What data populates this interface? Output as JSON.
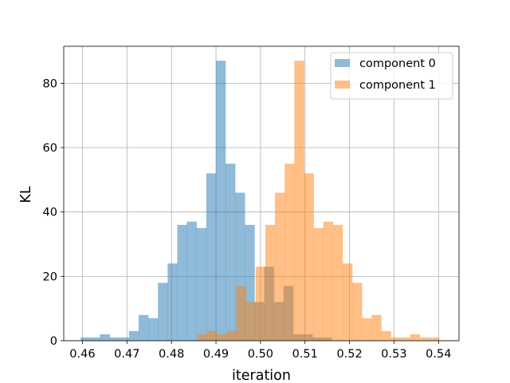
{
  "chart_data": {
    "type": "histogram",
    "title": "",
    "xlabel": "iteration",
    "ylabel": "KL",
    "xlim": [
      0.4558,
      0.5446
    ],
    "ylim": [
      0,
      91.5
    ],
    "grid": true,
    "legend_position": "top-right",
    "x_ticks": [
      "0.46",
      "0.47",
      "0.48",
      "0.49",
      "0.50",
      "0.51",
      "0.52",
      "0.53",
      "0.54"
    ],
    "x_tick_values": [
      0.46,
      0.47,
      0.48,
      0.49,
      0.5,
      0.51,
      0.52,
      0.53,
      0.54
    ],
    "y_ticks": [
      "0",
      "20",
      "40",
      "60",
      "80"
    ],
    "y_tick_values": [
      0,
      20,
      40,
      60,
      80
    ],
    "series": [
      {
        "name": "component 0",
        "color": "#1f77b4",
        "alpha": 0.5,
        "bin_start": 0.4596,
        "bin_width": 0.00217,
        "counts": [
          1,
          1,
          2,
          1,
          1,
          3,
          8,
          7,
          18,
          24,
          36,
          37,
          35,
          52,
          87,
          55,
          46,
          36,
          12,
          23,
          12,
          17,
          2,
          2,
          1,
          1
        ]
      },
      {
        "name": "component 1",
        "color": "#ff7f0e",
        "alpha": 0.5,
        "bin_start": 0.4859,
        "bin_width": 0.00217,
        "counts": [
          2,
          3,
          2,
          3,
          17,
          12,
          23,
          36,
          46,
          55,
          87,
          52,
          35,
          37,
          36,
          24,
          18,
          7,
          8,
          3,
          1,
          1,
          2,
          1,
          1
        ]
      }
    ]
  }
}
